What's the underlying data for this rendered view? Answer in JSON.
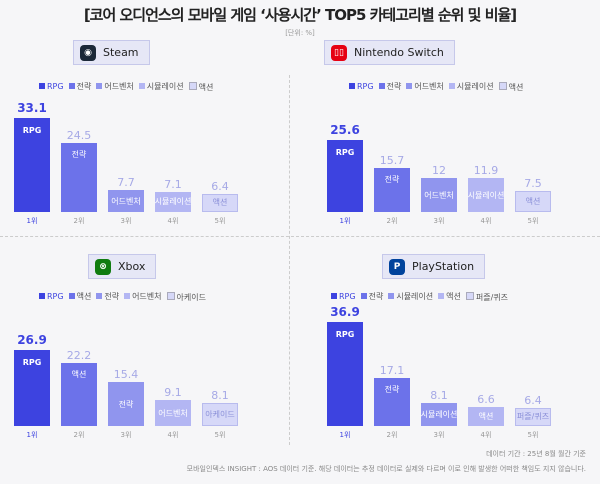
{
  "title": "[코어 오디언스의 모바일 게임 ‘사용시간’ TOP5 카테고리별 순위 및 비율]",
  "unit": "[단위: %]",
  "colors": [
    "#3d43e0",
    "#6c72ea",
    "#9095ee",
    "#b3b6f3",
    "#d6d8f8"
  ],
  "chart_data": [
    {
      "type": "bar",
      "platform": "Steam",
      "icon": "steam-icon",
      "legend": [
        "RPG",
        "전략",
        "어드벤처",
        "시뮬레이션",
        "액션"
      ],
      "categories": [
        "1위",
        "2위",
        "3위",
        "4위",
        "5위"
      ],
      "labels": [
        "RPG",
        "전략",
        "어드벤처",
        "시뮬레이션",
        "액션"
      ],
      "values": [
        33.1,
        24.5,
        7.7,
        7.1,
        6.4
      ]
    },
    {
      "type": "bar",
      "platform": "Nintendo Switch",
      "icon": "nintendo-switch-icon",
      "legend": [
        "RPG",
        "전략",
        "어드벤처",
        "시뮬레이션",
        "액션"
      ],
      "categories": [
        "1위",
        "2위",
        "3위",
        "4위",
        "5위"
      ],
      "labels": [
        "RPG",
        "전략",
        "어드벤처",
        "시뮬레이션",
        "액션"
      ],
      "values": [
        25.6,
        15.7,
        12,
        11.9,
        7.5
      ]
    },
    {
      "type": "bar",
      "platform": "Xbox",
      "icon": "xbox-icon",
      "legend": [
        "RPG",
        "액션",
        "전략",
        "어드벤처",
        "아케이드"
      ],
      "categories": [
        "1위",
        "2위",
        "3위",
        "4위",
        "5위"
      ],
      "labels": [
        "RPG",
        "액션",
        "전략",
        "어드벤처",
        "아케이드"
      ],
      "values": [
        26.9,
        22.2,
        15.4,
        9.1,
        8.1
      ]
    },
    {
      "type": "bar",
      "platform": "PlayStation",
      "icon": "playstation-icon",
      "legend": [
        "RPG",
        "전략",
        "시뮬레이션",
        "액션",
        "퍼즐/퀴즈"
      ],
      "categories": [
        "1위",
        "2위",
        "3위",
        "4위",
        "5위"
      ],
      "labels": [
        "RPG",
        "전략",
        "시뮬레이션",
        "액션",
        "퍼즐/퀴즈"
      ],
      "values": [
        36.9,
        17.1,
        8.1,
        6.6,
        6.4
      ]
    }
  ],
  "note": "데이터 기간 : 25년 8월 월간 기준",
  "footer": "모바일인덱스 INSIGHT : AOS 데이터 기준. 해당 데이터는 추정 데이터로 실제와 다르며 이로 인해 발생한 어떠한 책임도 지지 않습니다."
}
